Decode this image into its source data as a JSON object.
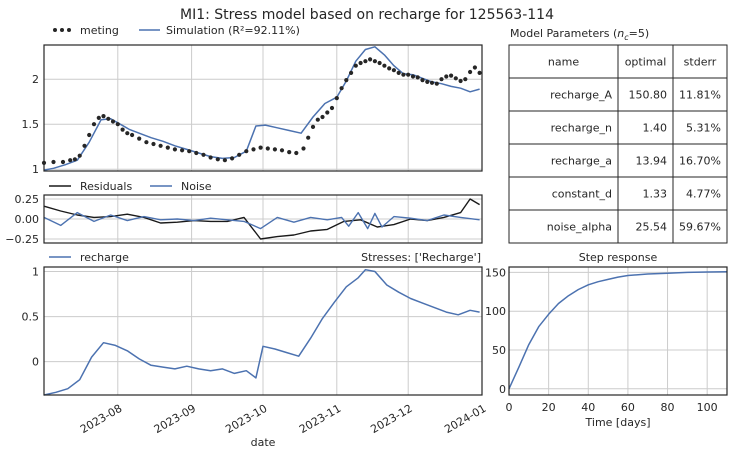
{
  "title": "MI1: Stress model based on recharge for 125563-114",
  "colors": {
    "observed": "#262626",
    "simulation": "#4c72b0",
    "residuals": "#1a1a1a",
    "noise": "#4c72b0",
    "grid": "#cccccc"
  },
  "chart_data": [
    {
      "id": "model",
      "type": "line",
      "x_axis": "date",
      "xlim": [
        "2023-07-01",
        "2024-01-01"
      ],
      "ylim": [
        0.98,
        2.38
      ],
      "yticks": [
        1.0,
        1.5,
        2.0
      ],
      "grid": true,
      "legend": "top-left",
      "series": [
        {
          "name": "meting",
          "style": "points",
          "x": [
            "2023-07-01",
            "2023-07-05",
            "2023-07-09",
            "2023-07-12",
            "2023-07-14",
            "2023-07-16",
            "2023-07-18",
            "2023-07-20",
            "2023-07-22",
            "2023-07-24",
            "2023-07-26",
            "2023-07-28",
            "2023-07-30",
            "2023-08-01",
            "2023-08-03",
            "2023-08-05",
            "2023-08-07",
            "2023-08-10",
            "2023-08-13",
            "2023-08-16",
            "2023-08-19",
            "2023-08-22",
            "2023-08-25",
            "2023-08-28",
            "2023-08-31",
            "2023-09-03",
            "2023-09-06",
            "2023-09-09",
            "2023-09-12",
            "2023-09-15",
            "2023-09-18",
            "2023-09-21",
            "2023-09-24",
            "2023-09-27",
            "2023-09-30",
            "2023-10-03",
            "2023-10-06",
            "2023-10-09",
            "2023-10-12",
            "2023-10-15",
            "2023-10-18",
            "2023-10-20",
            "2023-10-22",
            "2023-10-24",
            "2023-10-26",
            "2023-10-28",
            "2023-10-30",
            "2023-11-01",
            "2023-11-03",
            "2023-11-05",
            "2023-11-07",
            "2023-11-09",
            "2023-11-11",
            "2023-11-13",
            "2023-11-15",
            "2023-11-17",
            "2023-11-19",
            "2023-11-21",
            "2023-11-23",
            "2023-11-25",
            "2023-11-27",
            "2023-11-29",
            "2023-12-01",
            "2023-12-03",
            "2023-12-05",
            "2023-12-07",
            "2023-12-09",
            "2023-12-11",
            "2023-12-13",
            "2023-12-15",
            "2023-12-17",
            "2023-12-19",
            "2023-12-21",
            "2023-12-23",
            "2023-12-25",
            "2023-12-27",
            "2023-12-29",
            "2023-12-31"
          ],
          "y": [
            1.07,
            1.08,
            1.08,
            1.1,
            1.11,
            1.15,
            1.26,
            1.38,
            1.5,
            1.57,
            1.59,
            1.56,
            1.53,
            1.5,
            1.44,
            1.4,
            1.38,
            1.34,
            1.3,
            1.28,
            1.26,
            1.24,
            1.22,
            1.21,
            1.2,
            1.18,
            1.16,
            1.13,
            1.11,
            1.1,
            1.12,
            1.16,
            1.2,
            1.22,
            1.24,
            1.23,
            1.22,
            1.21,
            1.19,
            1.18,
            1.23,
            1.35,
            1.47,
            1.55,
            1.58,
            1.63,
            1.68,
            1.79,
            1.9,
            1.99,
            2.07,
            2.15,
            2.18,
            2.2,
            2.22,
            2.2,
            2.18,
            2.15,
            2.12,
            2.1,
            2.07,
            2.05,
            2.05,
            2.03,
            2.02,
            1.99,
            1.97,
            1.96,
            1.95,
            2.0,
            2.03,
            2.04,
            2.01,
            1.98,
            2.0,
            2.08,
            2.13,
            2.07
          ]
        },
        {
          "name": "Simulation (R²=92.11%)",
          "style": "line",
          "x": [
            "2023-07-01",
            "2023-07-05",
            "2023-07-10",
            "2023-07-15",
            "2023-07-20",
            "2023-07-25",
            "2023-07-29",
            "2023-08-02",
            "2023-08-06",
            "2023-08-10",
            "2023-08-15",
            "2023-08-20",
            "2023-08-25",
            "2023-08-30",
            "2023-09-04",
            "2023-09-09",
            "2023-09-14",
            "2023-09-19",
            "2023-09-24",
            "2023-09-28",
            "2023-10-02",
            "2023-10-07",
            "2023-10-12",
            "2023-10-17",
            "2023-10-22",
            "2023-10-27",
            "2023-11-01",
            "2023-11-05",
            "2023-11-09",
            "2023-11-13",
            "2023-11-17",
            "2023-11-21",
            "2023-11-25",
            "2023-11-29",
            "2023-12-03",
            "2023-12-07",
            "2023-12-11",
            "2023-12-15",
            "2023-12-19",
            "2023-12-23",
            "2023-12-27",
            "2023-12-31"
          ],
          "y": [
            0.99,
            1.01,
            1.05,
            1.1,
            1.3,
            1.55,
            1.56,
            1.5,
            1.44,
            1.4,
            1.35,
            1.31,
            1.26,
            1.22,
            1.18,
            1.14,
            1.12,
            1.13,
            1.2,
            1.48,
            1.49,
            1.46,
            1.43,
            1.4,
            1.58,
            1.73,
            1.8,
            1.98,
            2.2,
            2.33,
            2.36,
            2.27,
            2.15,
            2.06,
            2.05,
            2.01,
            1.97,
            1.95,
            1.92,
            1.9,
            1.86,
            1.89
          ]
        }
      ]
    },
    {
      "id": "residuals",
      "type": "line",
      "xlim": [
        "2023-07-01",
        "2024-01-01"
      ],
      "ylim": [
        -0.3,
        0.3
      ],
      "yticks": [
        -0.25,
        0.0,
        0.25
      ],
      "ytick_labels": [
        "−0.25",
        "0.00",
        "0.25"
      ],
      "grid": true,
      "legend": "top-left",
      "series": [
        {
          "name": "Residuals",
          "x": [
            "2023-07-01",
            "2023-07-08",
            "2023-07-15",
            "2023-07-22",
            "2023-07-29",
            "2023-08-05",
            "2023-08-12",
            "2023-08-19",
            "2023-08-26",
            "2023-09-02",
            "2023-09-09",
            "2023-09-16",
            "2023-09-23",
            "2023-09-30",
            "2023-10-07",
            "2023-10-14",
            "2023-10-21",
            "2023-10-28",
            "2023-11-04",
            "2023-11-11",
            "2023-11-18",
            "2023-11-25",
            "2023-12-02",
            "2023-12-09",
            "2023-12-16",
            "2023-12-23",
            "2023-12-27",
            "2023-12-31"
          ],
          "y": [
            0.16,
            0.1,
            0.05,
            0.02,
            0.03,
            0.06,
            0.02,
            -0.05,
            -0.04,
            -0.02,
            -0.03,
            -0.03,
            0.02,
            -0.25,
            -0.22,
            -0.2,
            -0.15,
            -0.13,
            -0.03,
            -0.01,
            -0.1,
            -0.07,
            0.0,
            -0.02,
            0.02,
            0.08,
            0.25,
            0.18
          ]
        },
        {
          "name": "Noise",
          "x": [
            "2023-07-01",
            "2023-07-08",
            "2023-07-15",
            "2023-07-22",
            "2023-07-29",
            "2023-08-05",
            "2023-08-12",
            "2023-08-19",
            "2023-08-26",
            "2023-09-02",
            "2023-09-09",
            "2023-09-16",
            "2023-09-23",
            "2023-09-30",
            "2023-10-07",
            "2023-10-14",
            "2023-10-21",
            "2023-10-28",
            "2023-11-03",
            "2023-11-06",
            "2023-11-10",
            "2023-11-14",
            "2023-11-17",
            "2023-11-20",
            "2023-11-25",
            "2023-12-02",
            "2023-12-09",
            "2023-12-16",
            "2023-12-23",
            "2023-12-31"
          ],
          "y": [
            0.02,
            -0.08,
            0.08,
            -0.03,
            0.05,
            -0.02,
            0.03,
            -0.01,
            0.0,
            -0.02,
            0.01,
            -0.01,
            -0.03,
            -0.12,
            0.02,
            -0.04,
            0.02,
            -0.01,
            0.02,
            -0.09,
            0.08,
            -0.12,
            0.07,
            -0.1,
            0.03,
            0.01,
            -0.02,
            0.05,
            0.02,
            -0.01
          ]
        }
      ]
    },
    {
      "id": "stresses",
      "type": "line",
      "title": "Stresses: ['Recharge']",
      "xlabel": "date",
      "xlim": [
        "2023-07-01",
        "2024-01-01"
      ],
      "xticks": [
        "2023-08-01",
        "2023-09-01",
        "2023-10-01",
        "2023-11-01",
        "2023-12-01",
        "2024-01-01"
      ],
      "xtick_labels": [
        "2023-08",
        "2023-09",
        "2023-10",
        "2023-11",
        "2023-12",
        "2024-01"
      ],
      "ylim": [
        -0.37,
        1.05
      ],
      "yticks": [
        0.0,
        0.5,
        1.0
      ],
      "grid": true,
      "legend": "top-left",
      "series": [
        {
          "name": "recharge",
          "x": [
            "2023-07-01",
            "2023-07-06",
            "2023-07-11",
            "2023-07-16",
            "2023-07-21",
            "2023-07-26",
            "2023-07-31",
            "2023-08-05",
            "2023-08-10",
            "2023-08-15",
            "2023-08-20",
            "2023-08-25",
            "2023-08-30",
            "2023-09-04",
            "2023-09-09",
            "2023-09-14",
            "2023-09-19",
            "2023-09-24",
            "2023-09-28",
            "2023-10-01",
            "2023-10-06",
            "2023-10-11",
            "2023-10-16",
            "2023-10-21",
            "2023-10-26",
            "2023-10-31",
            "2023-11-05",
            "2023-11-10",
            "2023-11-13",
            "2023-11-17",
            "2023-11-22",
            "2023-11-27",
            "2023-12-02",
            "2023-12-07",
            "2023-12-12",
            "2023-12-17",
            "2023-12-22",
            "2023-12-27",
            "2023-12-31"
          ],
          "y": [
            -0.37,
            -0.34,
            -0.3,
            -0.2,
            0.05,
            0.21,
            0.18,
            0.12,
            0.03,
            -0.04,
            -0.06,
            -0.08,
            -0.05,
            -0.08,
            -0.1,
            -0.08,
            -0.13,
            -0.1,
            -0.18,
            0.17,
            0.14,
            0.1,
            0.06,
            0.26,
            0.48,
            0.66,
            0.83,
            0.93,
            1.02,
            1.0,
            0.85,
            0.77,
            0.7,
            0.65,
            0.6,
            0.55,
            0.52,
            0.57,
            0.55
          ]
        }
      ]
    },
    {
      "id": "step",
      "type": "line",
      "title": "Step response",
      "xlabel": "Time [days]",
      "xlim": [
        0,
        110
      ],
      "xticks": [
        0,
        20,
        40,
        60,
        80,
        100
      ],
      "ylim": [
        -8,
        157
      ],
      "yticks": [
        0,
        50,
        100,
        150
      ],
      "grid": true,
      "series": [
        {
          "name": "step",
          "x": [
            0,
            5,
            10,
            15,
            20,
            25,
            30,
            35,
            40,
            45,
            50,
            55,
            60,
            70,
            80,
            90,
            100,
            110
          ],
          "y": [
            0,
            28,
            57,
            80,
            96,
            110,
            120,
            128,
            134,
            138,
            141,
            144,
            146,
            148,
            149,
            150,
            150.5,
            150.8
          ]
        }
      ]
    }
  ],
  "parameters": {
    "title": "Model Parameters (nc=5)",
    "columns": [
      "name",
      "optimal",
      "stderr"
    ],
    "rows": [
      [
        "recharge_A",
        "150.80",
        "11.81%"
      ],
      [
        "recharge_n",
        "1.40",
        "5.31%"
      ],
      [
        "recharge_a",
        "13.94",
        "16.70%"
      ],
      [
        "constant_d",
        "1.33",
        "4.77%"
      ],
      [
        "noise_alpha",
        "25.54",
        "59.67%"
      ]
    ]
  }
}
